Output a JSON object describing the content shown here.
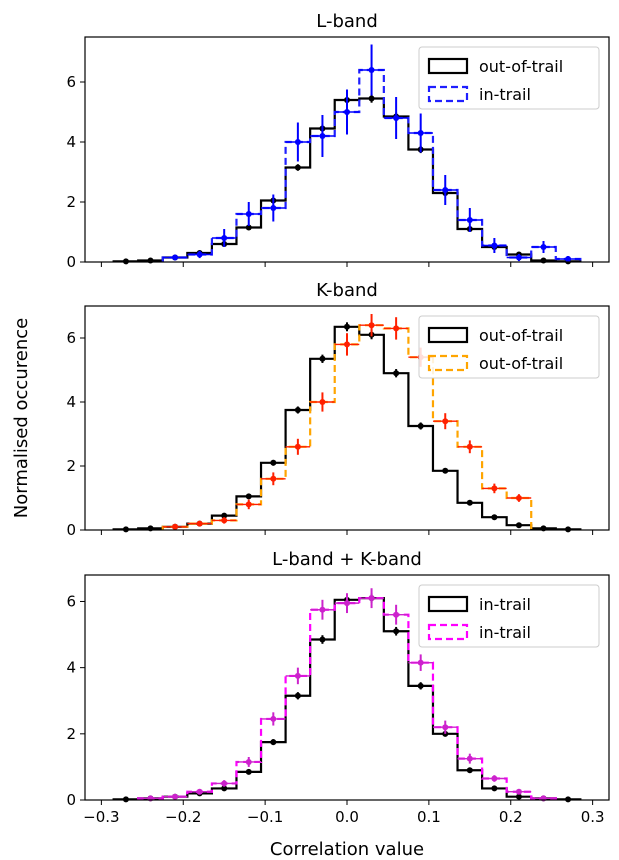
{
  "chart_data": [
    {
      "type": "histogram",
      "title": "L-band",
      "xlim": [
        -0.32,
        0.32
      ],
      "ylim": [
        0,
        7.5
      ],
      "xticks": [
        -0.3,
        -0.2,
        -0.1,
        0.0,
        0.1,
        0.2,
        0.3
      ],
      "yticks": [
        0,
        2,
        4,
        6
      ],
      "ytick_labels": [
        "0",
        "2",
        "4",
        "6"
      ],
      "legend_position": "top-right",
      "series": [
        {
          "name": "out-of-trail",
          "style": "solid",
          "line_color": "#000000",
          "marker_color": "#000000",
          "bin_width": 0.03,
          "x": [
            -0.27,
            -0.24,
            -0.21,
            -0.18,
            -0.15,
            -0.12,
            -0.09,
            -0.06,
            -0.03,
            0.0,
            0.03,
            0.06,
            0.09,
            0.12,
            0.15,
            0.18,
            0.21,
            0.24,
            0.27
          ],
          "y": [
            0.02,
            0.05,
            0.15,
            0.3,
            0.6,
            1.15,
            2.05,
            3.15,
            4.45,
            5.4,
            5.45,
            4.85,
            3.75,
            2.3,
            1.1,
            0.5,
            0.25,
            0.05,
            0.02
          ],
          "err": [
            0.02,
            0.02,
            0.03,
            0.04,
            0.05,
            0.07,
            0.09,
            0.11,
            0.13,
            0.14,
            0.14,
            0.13,
            0.12,
            0.09,
            0.06,
            0.04,
            0.03,
            0.02,
            0.02
          ]
        },
        {
          "name": "in-trail",
          "style": "dashed",
          "line_color": "#1f1fff",
          "marker_color": "#0000ff",
          "bin_width": 0.03,
          "x": [
            -0.21,
            -0.18,
            -0.15,
            -0.12,
            -0.09,
            -0.06,
            -0.03,
            0.0,
            0.03,
            0.06,
            0.09,
            0.12,
            0.15,
            0.18,
            0.21,
            0.24,
            0.27
          ],
          "y": [
            0.15,
            0.25,
            0.8,
            1.6,
            1.8,
            4.0,
            4.2,
            5.0,
            6.4,
            4.8,
            4.3,
            2.4,
            1.4,
            0.55,
            0.15,
            0.5,
            0.1
          ],
          "err": [
            0.08,
            0.12,
            0.3,
            0.4,
            0.45,
            0.65,
            0.7,
            0.75,
            0.85,
            0.7,
            0.65,
            0.5,
            0.4,
            0.25,
            0.12,
            0.2,
            0.1
          ]
        }
      ]
    },
    {
      "type": "histogram",
      "title": "K-band",
      "xlim": [
        -0.32,
        0.32
      ],
      "ylim": [
        0,
        7.0
      ],
      "xticks": [
        -0.3,
        -0.2,
        -0.1,
        0.0,
        0.1,
        0.2,
        0.3
      ],
      "yticks": [
        0,
        2,
        4,
        6
      ],
      "ytick_labels": [
        "0",
        "2",
        "4",
        "6"
      ],
      "legend_position": "top-right",
      "series": [
        {
          "name": "out-of-trail",
          "style": "solid",
          "line_color": "#000000",
          "marker_color": "#000000",
          "bin_width": 0.03,
          "x": [
            -0.27,
            -0.24,
            -0.21,
            -0.18,
            -0.15,
            -0.12,
            -0.09,
            -0.06,
            -0.03,
            0.0,
            0.03,
            0.06,
            0.09,
            0.12,
            0.15,
            0.18,
            0.21,
            0.24,
            0.27
          ],
          "y": [
            0.02,
            0.05,
            0.1,
            0.2,
            0.45,
            1.05,
            2.1,
            3.75,
            5.35,
            6.35,
            6.1,
            4.9,
            3.25,
            1.85,
            0.85,
            0.4,
            0.15,
            0.05,
            0.02
          ],
          "err": [
            0.01,
            0.02,
            0.03,
            0.04,
            0.05,
            0.07,
            0.09,
            0.11,
            0.13,
            0.14,
            0.14,
            0.13,
            0.11,
            0.08,
            0.06,
            0.04,
            0.03,
            0.02,
            0.01
          ]
        },
        {
          "name": "out-of-trail",
          "style": "dashed",
          "line_color": "#ffa500",
          "marker_color": "#ff2000",
          "bin_width": 0.03,
          "x": [
            -0.21,
            -0.18,
            -0.15,
            -0.12,
            -0.09,
            -0.06,
            -0.03,
            0.0,
            0.03,
            0.06,
            0.09,
            0.12,
            0.15,
            0.18,
            0.21
          ],
          "y": [
            0.1,
            0.2,
            0.3,
            0.8,
            1.6,
            2.6,
            4.0,
            5.8,
            6.4,
            6.3,
            5.4,
            3.4,
            2.6,
            1.3,
            1.0
          ],
          "err": [
            0.05,
            0.07,
            0.1,
            0.15,
            0.2,
            0.25,
            0.3,
            0.35,
            0.35,
            0.35,
            0.3,
            0.25,
            0.2,
            0.15,
            0.12
          ]
        }
      ]
    },
    {
      "type": "histogram",
      "title": "L-band + K-band",
      "xlabel": "Correlation value",
      "xlim": [
        -0.32,
        0.32
      ],
      "ylim": [
        0,
        6.8
      ],
      "xticks": [
        -0.3,
        -0.2,
        -0.1,
        0.0,
        0.1,
        0.2,
        0.3
      ],
      "xtick_labels": [
        "−0.3",
        "−0.2",
        "−0.1",
        "0.0",
        "0.1",
        "0.2",
        "0.3"
      ],
      "yticks": [
        0,
        2,
        4,
        6
      ],
      "ytick_labels": [
        "0",
        "2",
        "4",
        "6"
      ],
      "legend_position": "top-right",
      "series": [
        {
          "name": "in-trail",
          "style": "solid",
          "line_color": "#000000",
          "marker_color": "#000000",
          "bin_width": 0.03,
          "x": [
            -0.27,
            -0.24,
            -0.21,
            -0.18,
            -0.15,
            -0.12,
            -0.09,
            -0.06,
            -0.03,
            0.0,
            0.03,
            0.06,
            0.09,
            0.12,
            0.15,
            0.18,
            0.21,
            0.24,
            0.27
          ],
          "y": [
            0.02,
            0.05,
            0.1,
            0.2,
            0.35,
            0.85,
            1.75,
            3.15,
            4.85,
            6.05,
            6.1,
            5.1,
            3.45,
            2.0,
            0.9,
            0.35,
            0.1,
            0.05,
            0.02
          ],
          "err": [
            0.01,
            0.02,
            0.03,
            0.04,
            0.05,
            0.07,
            0.09,
            0.11,
            0.13,
            0.14,
            0.14,
            0.13,
            0.11,
            0.08,
            0.06,
            0.04,
            0.03,
            0.02,
            0.01
          ]
        },
        {
          "name": "in-trail",
          "style": "dashed",
          "line_color": "#ff00ff",
          "marker_color": "#cc22cc",
          "bin_width": 0.03,
          "x": [
            -0.24,
            -0.21,
            -0.18,
            -0.15,
            -0.12,
            -0.09,
            -0.06,
            -0.03,
            0.0,
            0.03,
            0.06,
            0.09,
            0.12,
            0.15,
            0.18,
            0.21,
            0.24
          ],
          "y": [
            0.05,
            0.1,
            0.25,
            0.5,
            1.15,
            2.45,
            3.75,
            5.75,
            5.95,
            6.1,
            5.6,
            4.15,
            2.2,
            1.25,
            0.65,
            0.25,
            0.05
          ],
          "err": [
            0.03,
            0.04,
            0.06,
            0.1,
            0.15,
            0.2,
            0.25,
            0.3,
            0.3,
            0.3,
            0.3,
            0.25,
            0.2,
            0.15,
            0.1,
            0.06,
            0.03
          ]
        }
      ]
    }
  ],
  "ylabel": "Normalised occurence"
}
